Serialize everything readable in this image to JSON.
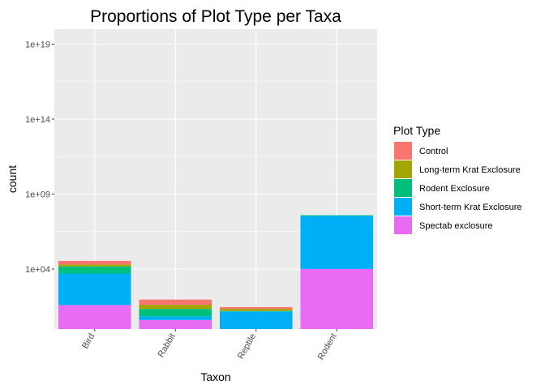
{
  "chart_data": {
    "type": "bar",
    "stacked": true,
    "title": "Proportions of Plot Type per Taxa",
    "xlabel": "Taxon",
    "ylabel": "count",
    "y_scale": "log10",
    "ylim": [
      1,
      1e+20
    ],
    "y_ticks": [
      10000.0,
      1000000000.0,
      100000000000000.0,
      1e+19
    ],
    "y_tick_labels": [
      "1e+04",
      "1e+09",
      "1e+14",
      "1e+19"
    ],
    "categories": [
      "Bird",
      "Rabbit",
      "Reptile",
      "Rodent"
    ],
    "grid": true,
    "legend": {
      "title": "Plot Type",
      "position": "right"
    },
    "series": [
      {
        "name": "Spectab exclosure",
        "color": "#E76BF3",
        "values": [
          40,
          4,
          null,
          10000
        ]
      },
      {
        "name": "Short-term Krat Exclosure",
        "color": "#00B0F6",
        "values": [
          5000,
          3,
          15,
          35000000.0
        ]
      },
      {
        "name": "Rodent Exclosure",
        "color": "#00BF7D",
        "values": [
          10000,
          15,
          1,
          4000000.0
        ]
      },
      {
        "name": "Long-term Krat Exclosure",
        "color": "#A3A500",
        "values": [
          5000,
          20,
          6,
          100000.0
        ]
      },
      {
        "name": "Control",
        "color": "#F8766D",
        "values": [
          15000,
          50,
          7,
          20000.0
        ]
      }
    ]
  }
}
